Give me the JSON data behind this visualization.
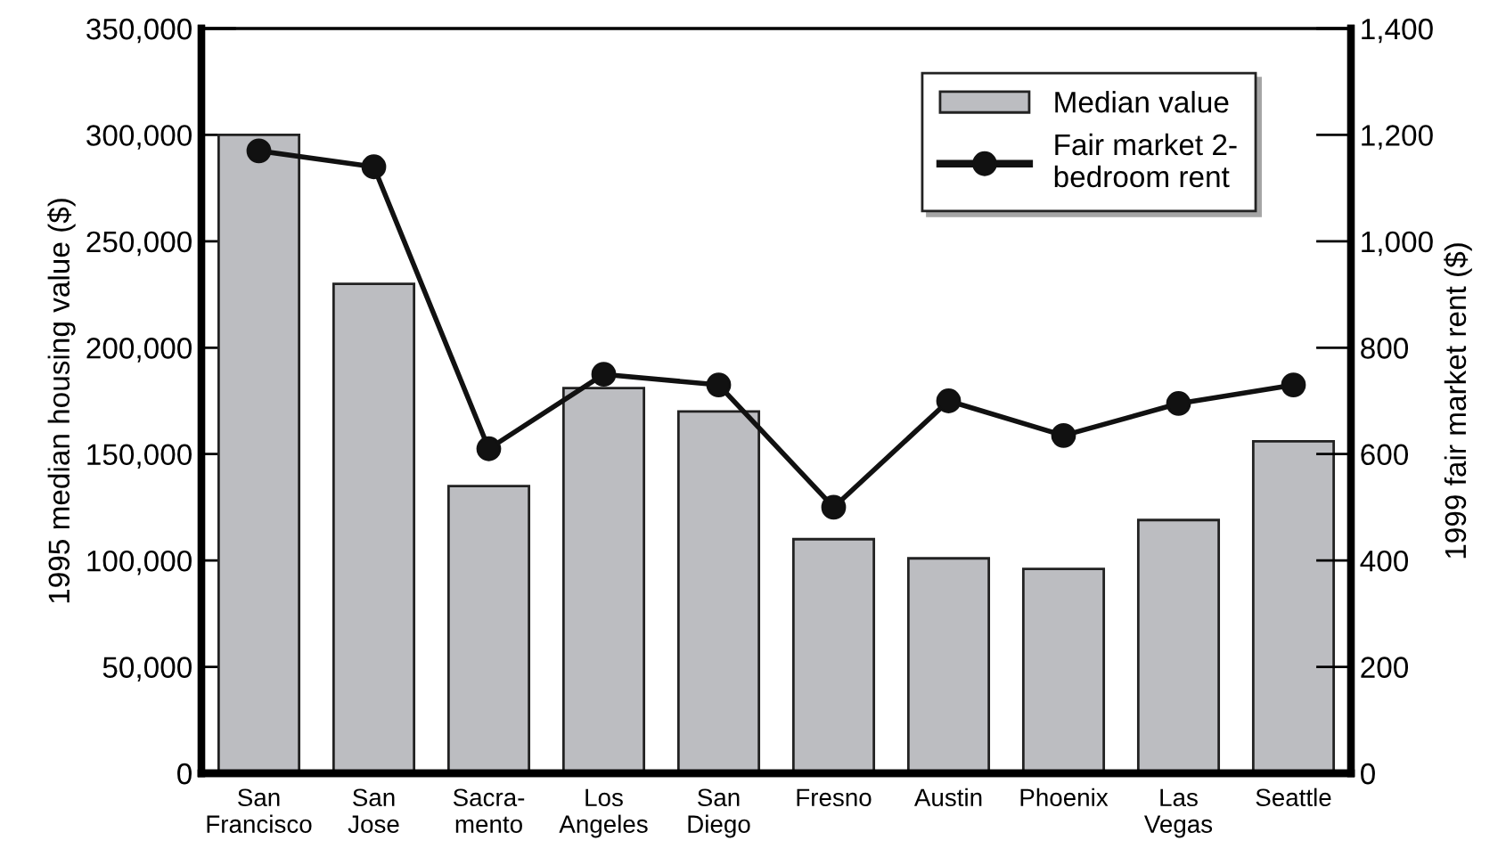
{
  "chart_data": {
    "type": "bar",
    "categories": [
      "San\nFrancisco",
      "San\nJose",
      "Sacra-\nmento",
      "Los\nAngeles",
      "San\nDiego",
      "Fresno",
      "Austin",
      "Phoenix",
      "Las\nVegas",
      "Seattle"
    ],
    "series": [
      {
        "name": "Median value",
        "color": "#bcbdc1",
        "values": [
          300000,
          230000,
          135000,
          181000,
          170000,
          110000,
          101000,
          96000,
          119000,
          156000
        ]
      },
      {
        "name": "Fair market 2-\nbedroom rent",
        "type": "line",
        "axis": "y2",
        "color": "#111111",
        "marker": "circle",
        "values": [
          1170,
          1140,
          610,
          750,
          730,
          500,
          700,
          635,
          695,
          730
        ]
      }
    ],
    "ylabel": "1995 median housing value ($)",
    "y2label": "1999 fair market rent ($)",
    "ylim": [
      0,
      350000
    ],
    "yticks": [
      {
        "value": 0,
        "label": "0"
      },
      {
        "value": 50000,
        "label": "50,000"
      },
      {
        "value": 100000,
        "label": "100,000"
      },
      {
        "value": 150000,
        "label": "150,000"
      },
      {
        "value": 200000,
        "label": "200,000"
      },
      {
        "value": 250000,
        "label": "250,000"
      },
      {
        "value": 300000,
        "label": "300,000"
      },
      {
        "value": 350000,
        "label": "350,000"
      }
    ],
    "y2lim": [
      0,
      1400
    ],
    "y2ticks": [
      {
        "value": 0,
        "label": "0"
      },
      {
        "value": 200,
        "label": "200"
      },
      {
        "value": 400,
        "label": "400"
      },
      {
        "value": 600,
        "label": "600"
      },
      {
        "value": 800,
        "label": "800"
      },
      {
        "value": 1000,
        "label": "1,000"
      },
      {
        "value": 1200,
        "label": "1,200"
      },
      {
        "value": 1400,
        "label": "1,400"
      }
    ],
    "legend": "top right",
    "grid": false
  }
}
